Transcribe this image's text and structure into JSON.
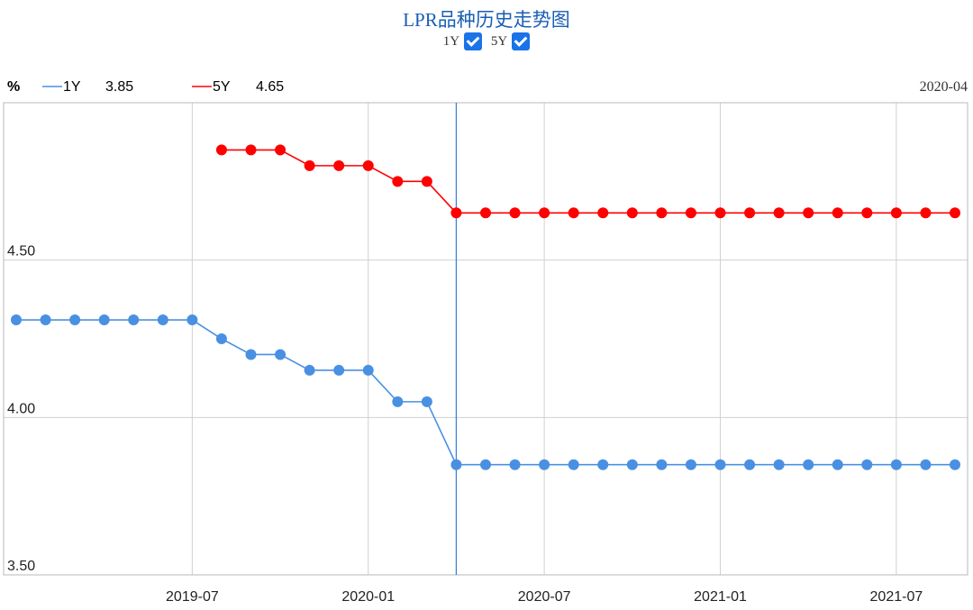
{
  "header": {
    "title": "LPR品种历史走势图",
    "toggles": [
      {
        "label": "1Y",
        "checked": true
      },
      {
        "label": "5Y",
        "checked": true
      }
    ]
  },
  "legend": {
    "unit": "%",
    "items": [
      {
        "name": "1Y",
        "value": "3.85",
        "color": "#4a90e2"
      },
      {
        "name": "5Y",
        "value": "4.65",
        "color": "#ff0000"
      }
    ],
    "cursor_date": "2020-04"
  },
  "chart_data": {
    "type": "line",
    "title": "LPR品种历史走势图",
    "x": [
      "2019-01",
      "2019-02",
      "2019-03",
      "2019-04",
      "2019-05",
      "2019-06",
      "2019-07",
      "2019-08",
      "2019-09",
      "2019-10",
      "2019-11",
      "2019-12",
      "2020-01",
      "2020-02",
      "2020-03",
      "2020-04",
      "2020-05",
      "2020-06",
      "2020-07",
      "2020-08",
      "2020-09",
      "2020-10",
      "2020-11",
      "2020-12",
      "2021-01",
      "2021-02",
      "2021-03",
      "2021-04",
      "2021-05",
      "2021-06",
      "2021-07",
      "2021-08",
      "2021-09"
    ],
    "series": [
      {
        "name": "1Y",
        "color": "#4a90e2",
        "values": [
          4.31,
          4.31,
          4.31,
          4.31,
          4.31,
          4.31,
          4.31,
          4.25,
          4.2,
          4.2,
          4.15,
          4.15,
          4.15,
          4.05,
          4.05,
          3.85,
          3.85,
          3.85,
          3.85,
          3.85,
          3.85,
          3.85,
          3.85,
          3.85,
          3.85,
          3.85,
          3.85,
          3.85,
          3.85,
          3.85,
          3.85,
          3.85,
          3.85
        ]
      },
      {
        "name": "5Y",
        "color": "#ff0000",
        "values": [
          null,
          null,
          null,
          null,
          null,
          null,
          null,
          4.85,
          4.85,
          4.85,
          4.8,
          4.8,
          4.8,
          4.75,
          4.75,
          4.65,
          4.65,
          4.65,
          4.65,
          4.65,
          4.65,
          4.65,
          4.65,
          4.65,
          4.65,
          4.65,
          4.65,
          4.65,
          4.65,
          4.65,
          4.65,
          4.65,
          4.65
        ]
      }
    ],
    "xticks": [
      "2019-07",
      "2020-01",
      "2020-07",
      "2021-01",
      "2021-07"
    ],
    "ylim": [
      3.5,
      5.0
    ],
    "yticks": [
      "4.50",
      "4.00",
      "3.50"
    ],
    "cursor_x": "2020-04",
    "grid": true,
    "legend_position": "top-left"
  }
}
